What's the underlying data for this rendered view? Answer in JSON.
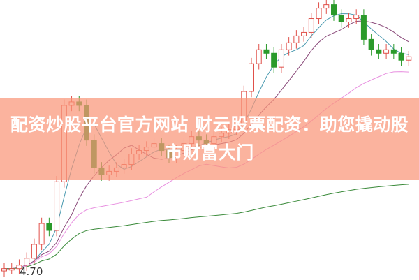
{
  "title": "配资炒股平台官方网站 财云股票配资：助您撬动股市财富大门",
  "chart_data": {
    "type": "candlestick",
    "title": "",
    "xlabel": "",
    "ylabel": "",
    "ylim": [
      4.68,
      7.05
    ],
    "grid": false,
    "low_label": "4.70",
    "reference_line": 5.72,
    "moving_averages": [
      5,
      10,
      20,
      60
    ],
    "closes": [
      4.73,
      4.73,
      4.76,
      4.82,
      4.94,
      5.12,
      5.06,
      5.48,
      6.14,
      6.17,
      6.14,
      5.84,
      5.6,
      5.54,
      5.57,
      5.6,
      5.63,
      5.72,
      5.75,
      5.78,
      5.81,
      5.75,
      5.69,
      5.75,
      5.81,
      5.87,
      5.84,
      5.81,
      5.87,
      5.9,
      5.93,
      5.96,
      6.26,
      6.5,
      6.62,
      6.59,
      6.47,
      6.62,
      6.68,
      6.74,
      6.77,
      6.89,
      6.98,
      7.01,
      6.92,
      6.86,
      6.89,
      6.92,
      6.71,
      6.62,
      6.59,
      6.62,
      6.59,
      6.53,
      6.56
    ]
  },
  "colors": {
    "up": "#e0504a",
    "down": "#2a9a2a",
    "ma5": "#4a9ab0",
    "ma10": "#8a4a7a",
    "ma20": "#e890e0",
    "ma60": "#3a8a3a",
    "banner": "#fa9678"
  }
}
